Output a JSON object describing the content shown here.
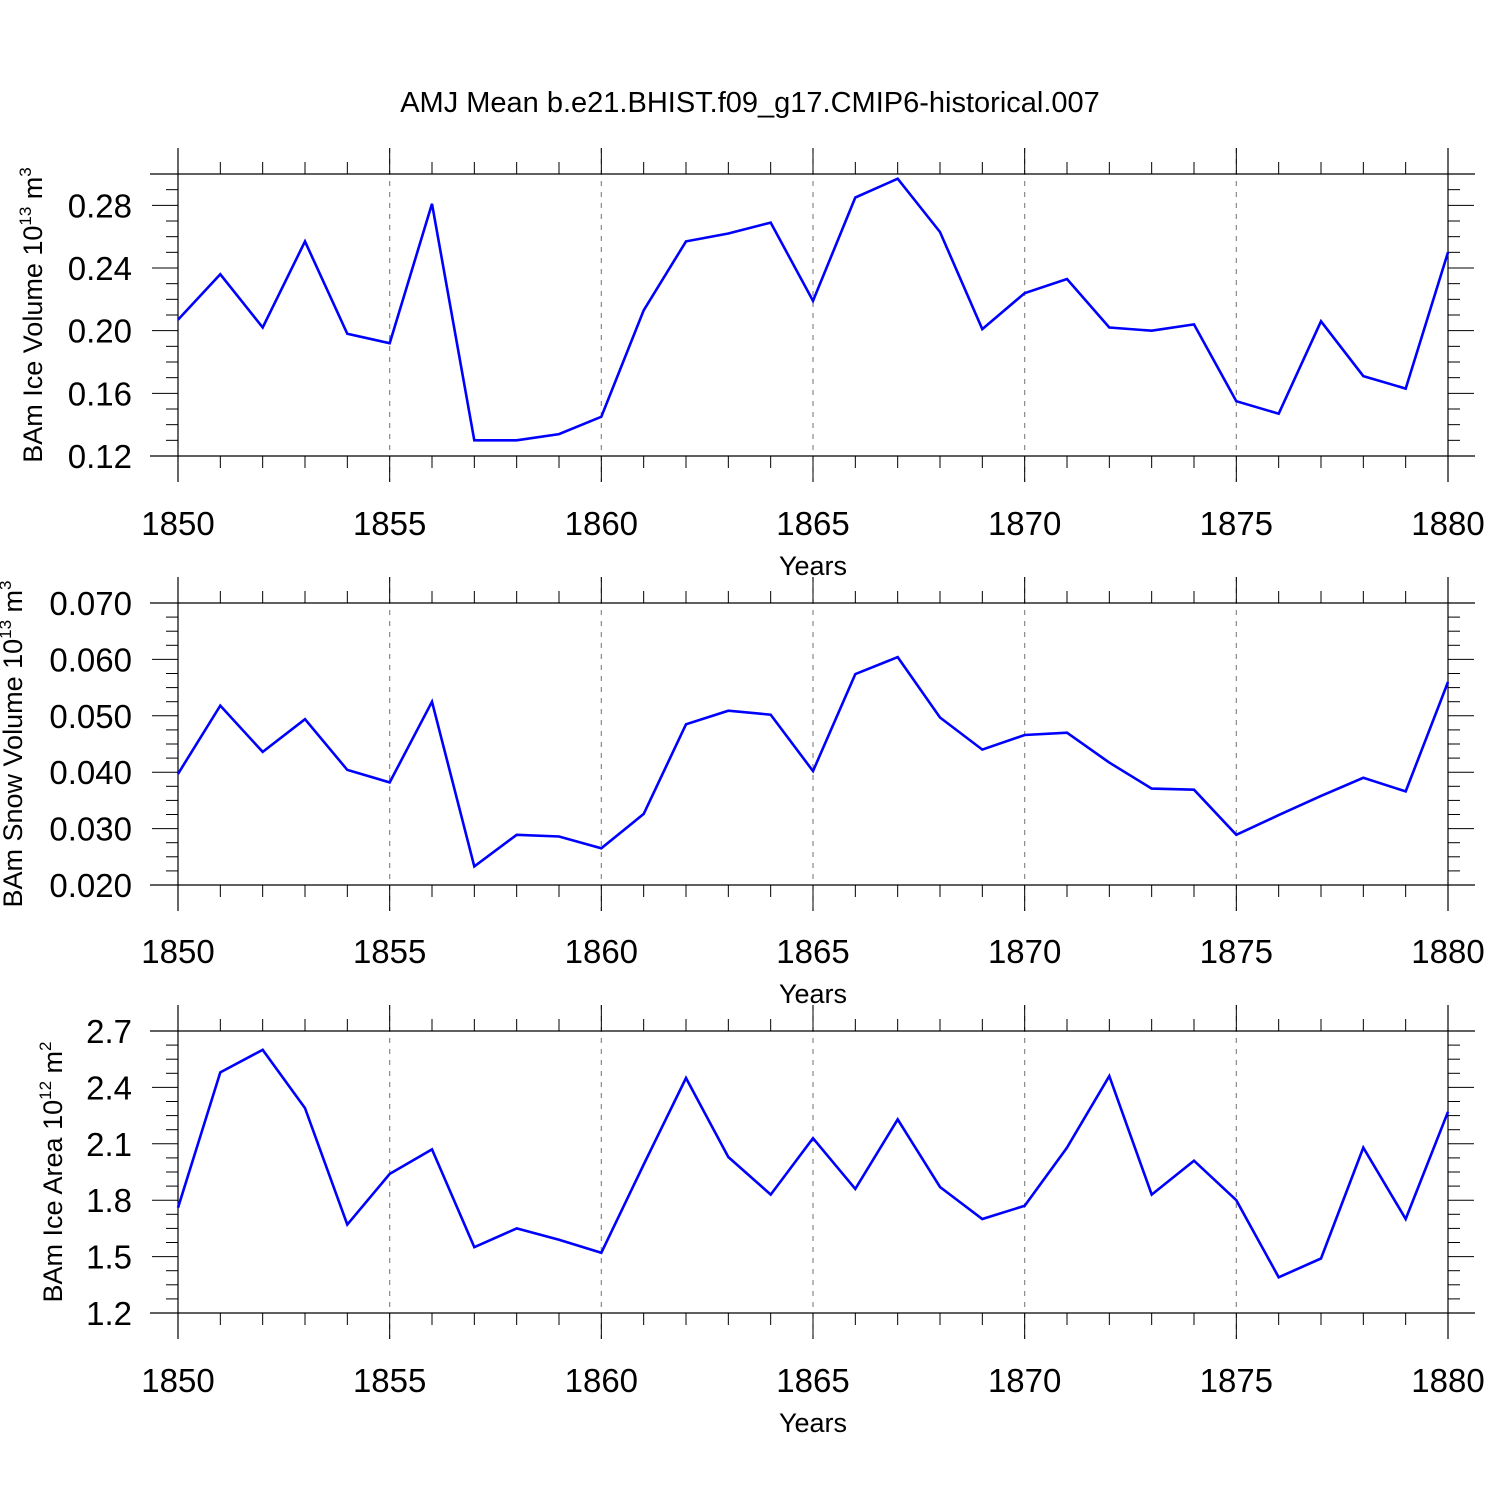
{
  "figure_title": "AMJ Mean b.e21.BHIST.f09_g17.CMIP6-historical.007",
  "colors": {
    "series": "#0000ff",
    "axes": "#000000",
    "grid": "#888888"
  },
  "chart_data": [
    {
      "id": "ice-volume",
      "type": "line",
      "ylabel": {
        "text": "BAm Ice Volume 10",
        "sup": "13",
        "unit": " m",
        "unit_sup": "3"
      },
      "xlabel": "Years",
      "xlim": [
        1850,
        1880
      ],
      "ylim": [
        0.12,
        0.3
      ],
      "xticks": [
        "1850",
        "1855",
        "1860",
        "1865",
        "1870",
        "1875",
        "1880"
      ],
      "yticks": [
        "0.12",
        "0.16",
        "0.20",
        "0.24",
        "0.28"
      ],
      "x": [
        1850,
        1851,
        1852,
        1853,
        1854,
        1855,
        1856,
        1857,
        1858,
        1859,
        1860,
        1861,
        1862,
        1863,
        1864,
        1865,
        1866,
        1867,
        1868,
        1869,
        1870,
        1871,
        1872,
        1873,
        1874,
        1875,
        1876,
        1877,
        1878,
        1879,
        1880
      ],
      "series": [
        {
          "name": "BAm Ice Volume",
          "values": [
            0.207,
            0.236,
            0.202,
            0.257,
            0.198,
            0.192,
            0.281,
            0.13,
            0.13,
            0.134,
            0.145,
            0.213,
            0.257,
            0.262,
            0.269,
            0.219,
            0.285,
            0.297,
            0.263,
            0.201,
            0.224,
            0.233,
            0.202,
            0.2,
            0.204,
            0.155,
            0.147,
            0.206,
            0.171,
            0.163,
            0.25
          ]
        }
      ]
    },
    {
      "id": "snow-volume",
      "type": "line",
      "ylabel": {
        "text": "BAm Snow Volume 10",
        "sup": "13",
        "unit": " m",
        "unit_sup": "3"
      },
      "xlabel": "Years",
      "xlim": [
        1850,
        1880
      ],
      "ylim": [
        0.02,
        0.07
      ],
      "xticks": [
        "1850",
        "1855",
        "1860",
        "1865",
        "1870",
        "1875",
        "1880"
      ],
      "yticks": [
        "0.020",
        "0.030",
        "0.040",
        "0.050",
        "0.060",
        "0.070"
      ],
      "x": [
        1850,
        1851,
        1852,
        1853,
        1854,
        1855,
        1856,
        1857,
        1858,
        1859,
        1860,
        1861,
        1862,
        1863,
        1864,
        1865,
        1866,
        1867,
        1868,
        1869,
        1870,
        1871,
        1872,
        1873,
        1874,
        1875,
        1876,
        1877,
        1878,
        1879,
        1880
      ],
      "series": [
        {
          "name": "BAm Snow Volume",
          "values": [
            0.0397,
            0.0518,
            0.0436,
            0.0494,
            0.0404,
            0.0382,
            0.0525,
            0.0233,
            0.0289,
            0.0286,
            0.0265,
            0.0326,
            0.0485,
            0.0509,
            0.0502,
            0.0402,
            0.0574,
            0.0604,
            0.0497,
            0.044,
            0.0466,
            0.047,
            0.0417,
            0.0371,
            0.0369,
            0.0289,
            0.0324,
            0.0358,
            0.039,
            0.0366,
            0.056
          ]
        }
      ]
    },
    {
      "id": "ice-area",
      "type": "line",
      "ylabel": {
        "text": "BAm Ice Area 10",
        "sup": "12",
        "unit": " m",
        "unit_sup": "2"
      },
      "xlabel": "Years",
      "xlim": [
        1850,
        1880
      ],
      "ylim": [
        1.2,
        2.7
      ],
      "xticks": [
        "1850",
        "1855",
        "1860",
        "1865",
        "1870",
        "1875",
        "1880"
      ],
      "yticks": [
        "1.2",
        "1.5",
        "1.8",
        "2.1",
        "2.4",
        "2.7"
      ],
      "x": [
        1850,
        1851,
        1852,
        1853,
        1854,
        1855,
        1856,
        1857,
        1858,
        1859,
        1860,
        1861,
        1862,
        1863,
        1864,
        1865,
        1866,
        1867,
        1868,
        1869,
        1870,
        1871,
        1872,
        1873,
        1874,
        1875,
        1876,
        1877,
        1878,
        1879,
        1880
      ],
      "series": [
        {
          "name": "BAm Ice Area",
          "values": [
            1.76,
            2.48,
            2.6,
            2.29,
            1.67,
            1.94,
            2.07,
            1.55,
            1.65,
            1.59,
            1.52,
            1.99,
            2.45,
            2.03,
            1.83,
            2.13,
            1.86,
            2.23,
            1.87,
            1.7,
            1.77,
            2.08,
            2.46,
            1.83,
            2.01,
            1.8,
            1.39,
            1.49,
            2.08,
            1.7,
            2.27
          ]
        }
      ]
    }
  ]
}
